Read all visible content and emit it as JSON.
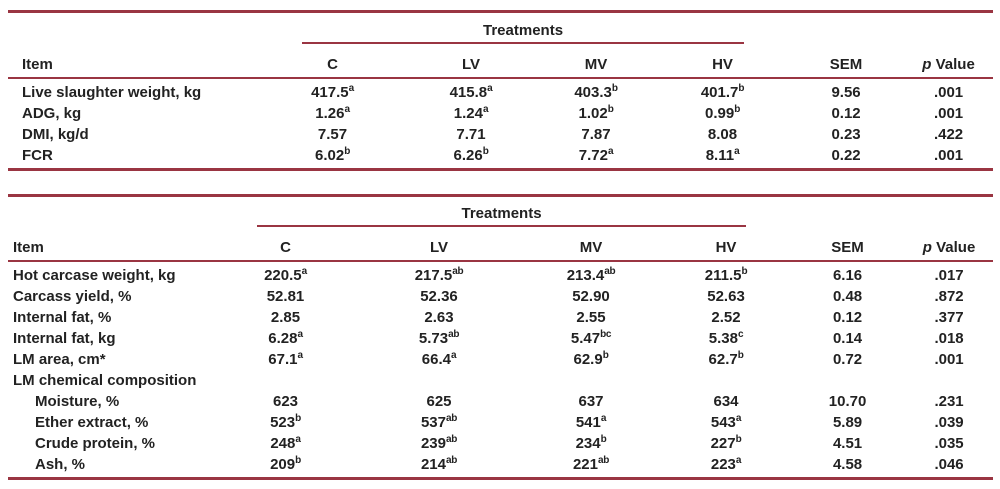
{
  "page": {
    "background_color": "#ffffff",
    "text_color": "#222222",
    "rule_color": "#9a3542"
  },
  "tables": [
    {
      "name": "growth-performance-table",
      "spanner": "Treatments",
      "headers": {
        "item": "Item",
        "treatments": [
          "C",
          "LV",
          "MV",
          "HV"
        ],
        "sem": "SEM",
        "p_italic": "p",
        "p_rest": " Value"
      },
      "rows": [
        {
          "label": "Live slaughter weight, kg",
          "indent": false,
          "cells": [
            [
              "417.5",
              "a"
            ],
            [
              "415.8",
              "a"
            ],
            [
              "403.3",
              "b"
            ],
            [
              "401.7",
              "b"
            ],
            [
              "9.56",
              ""
            ],
            [
              ".001",
              ""
            ]
          ]
        },
        {
          "label": "ADG, kg",
          "indent": false,
          "cells": [
            [
              "1.26",
              "a"
            ],
            [
              "1.24",
              "a"
            ],
            [
              "1.02",
              "b"
            ],
            [
              "0.99",
              "b"
            ],
            [
              "0.12",
              ""
            ],
            [
              ".001",
              ""
            ]
          ]
        },
        {
          "label": "DMI, kg/d",
          "indent": false,
          "cells": [
            [
              "7.57",
              ""
            ],
            [
              "7.71",
              ""
            ],
            [
              "7.87",
              ""
            ],
            [
              "8.08",
              ""
            ],
            [
              "0.23",
              ""
            ],
            [
              ".422",
              ""
            ]
          ]
        },
        {
          "label": "FCR",
          "indent": false,
          "cells": [
            [
              "6.02",
              "b"
            ],
            [
              "6.26",
              "b"
            ],
            [
              "7.72",
              "a"
            ],
            [
              "8.11",
              "a"
            ],
            [
              "0.22",
              ""
            ],
            [
              ".001",
              ""
            ]
          ]
        }
      ]
    },
    {
      "name": "carcass-traits-table",
      "spanner": "Treatments",
      "headers": {
        "item": "Item",
        "treatments": [
          "C",
          "LV",
          "MV",
          "HV"
        ],
        "sem": "SEM",
        "p_italic": "p",
        "p_rest": " Value"
      },
      "rows": [
        {
          "label": "Hot carcase weight, kg",
          "indent": false,
          "cells": [
            [
              "220.5",
              "a"
            ],
            [
              "217.5",
              "ab"
            ],
            [
              "213.4",
              "ab"
            ],
            [
              "211.5",
              "b"
            ],
            [
              "6.16",
              ""
            ],
            [
              ".017",
              ""
            ]
          ]
        },
        {
          "label": "Carcass yield, %",
          "indent": false,
          "cells": [
            [
              "52.81",
              ""
            ],
            [
              "52.36",
              ""
            ],
            [
              "52.90",
              ""
            ],
            [
              "52.63",
              ""
            ],
            [
              "0.48",
              ""
            ],
            [
              ".872",
              ""
            ]
          ]
        },
        {
          "label": "Internal fat, %",
          "indent": false,
          "cells": [
            [
              "2.85",
              ""
            ],
            [
              "2.63",
              ""
            ],
            [
              "2.55",
              ""
            ],
            [
              "2.52",
              ""
            ],
            [
              "0.12",
              ""
            ],
            [
              ".377",
              ""
            ]
          ]
        },
        {
          "label": "Internal fat, kg",
          "indent": false,
          "cells": [
            [
              "6.28",
              "a"
            ],
            [
              "5.73",
              "ab"
            ],
            [
              "5.47",
              "bc"
            ],
            [
              "5.38",
              "c"
            ],
            [
              "0.14",
              ""
            ],
            [
              ".018",
              ""
            ]
          ]
        },
        {
          "label": "LM area, cm*",
          "indent": false,
          "cells": [
            [
              "67.1",
              "a"
            ],
            [
              "66.4",
              "a"
            ],
            [
              "62.9",
              "b"
            ],
            [
              "62.7",
              "b"
            ],
            [
              "0.72",
              ""
            ],
            [
              ".001",
              ""
            ]
          ]
        },
        {
          "label": "LM chemical composition",
          "indent": false,
          "cells": []
        },
        {
          "label": "Moisture, %",
          "indent": true,
          "cells": [
            [
              "623",
              ""
            ],
            [
              "625",
              ""
            ],
            [
              "637",
              ""
            ],
            [
              "634",
              ""
            ],
            [
              "10.70",
              ""
            ],
            [
              ".231",
              ""
            ]
          ]
        },
        {
          "label": "Ether extract, %",
          "indent": true,
          "cells": [
            [
              "523",
              "b"
            ],
            [
              "537",
              "ab"
            ],
            [
              "541",
              "a"
            ],
            [
              "543",
              "a"
            ],
            [
              "5.89",
              ""
            ],
            [
              ".039",
              ""
            ]
          ]
        },
        {
          "label": "Crude protein, %",
          "indent": true,
          "cells": [
            [
              "248",
              "a"
            ],
            [
              "239",
              "ab"
            ],
            [
              "234",
              "b"
            ],
            [
              "227",
              "b"
            ],
            [
              "4.51",
              ""
            ],
            [
              ".035",
              ""
            ]
          ]
        },
        {
          "label": "Ash, %",
          "indent": true,
          "cells": [
            [
              "209",
              "b"
            ],
            [
              "214",
              "ab"
            ],
            [
              "221",
              "ab"
            ],
            [
              "223",
              "a"
            ],
            [
              "4.58",
              ""
            ],
            [
              ".046",
              ""
            ]
          ]
        }
      ]
    }
  ]
}
